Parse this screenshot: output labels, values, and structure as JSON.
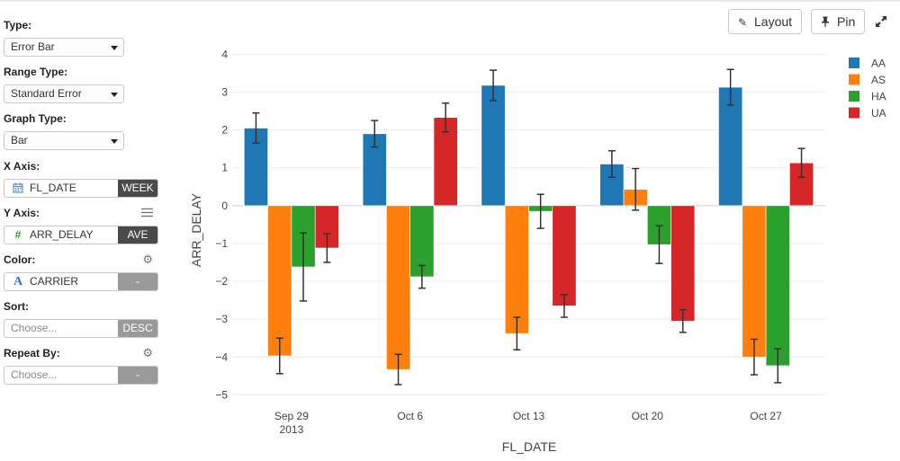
{
  "controls": {
    "type": {
      "label": "Type:",
      "value": "Error Bar"
    },
    "range_type": {
      "label": "Range Type:",
      "value": "Standard Error"
    },
    "graph_type": {
      "label": "Graph Type:",
      "value": "Bar"
    },
    "x_axis": {
      "label": "X Axis:",
      "value": "FL_DATE",
      "button": "WEEK",
      "icon": "calendar-icon"
    },
    "y_axis": {
      "label": "Y Axis:",
      "value": "ARR_DELAY",
      "button": "AVE",
      "icon": "hash-icon",
      "menu_icon": "list-icon"
    },
    "color": {
      "label": "Color:",
      "value": "CARRIER",
      "button": "-",
      "icon": "text-a-icon",
      "settings_icon": "gear-icon"
    },
    "sort": {
      "label": "Sort:",
      "placeholder": "Choose...",
      "button": "DESC"
    },
    "repeat_by": {
      "label": "Repeat By:",
      "placeholder": "Choose...",
      "button": "-",
      "settings_icon": "gear-icon"
    }
  },
  "toolbar": {
    "layout_label": "Layout",
    "pin_label": "Pin",
    "expand_icon": "expand-icon"
  },
  "chart_data": {
    "type": "bar",
    "xlabel": "FL_DATE",
    "ylabel": "ARR_DELAY",
    "ylim": [
      -5.3,
      4.2
    ],
    "yticks": [
      -5,
      -4,
      -3,
      -2,
      -1,
      0,
      1,
      2,
      3,
      4
    ],
    "categories": [
      "Sep 29",
      "Oct 6",
      "Oct 13",
      "Oct 20",
      "Oct 27"
    ],
    "category_sublabels": [
      "2013",
      "",
      "",
      "",
      ""
    ],
    "grid": true,
    "legend_position": "top-right",
    "series": [
      {
        "name": "AA",
        "color": "#1f77b4",
        "values": [
          2.05,
          1.9,
          3.18,
          1.1,
          3.13
        ],
        "errors": [
          0.4,
          0.35,
          0.4,
          0.35,
          0.47
        ]
      },
      {
        "name": "AS",
        "color": "#ff7f0e",
        "values": [
          -3.97,
          -4.33,
          -3.38,
          0.43,
          -4.0
        ],
        "errors": [
          0.47,
          0.4,
          0.43,
          0.55,
          0.47
        ]
      },
      {
        "name": "HA",
        "color": "#2ca02c",
        "values": [
          -1.62,
          -1.88,
          -0.15,
          -1.03,
          -4.23
        ],
        "errors": [
          0.9,
          0.3,
          0.45,
          0.5,
          0.45
        ]
      },
      {
        "name": "UA",
        "color": "#d62728",
        "values": [
          -1.12,
          2.33,
          -2.65,
          -3.05,
          1.13
        ],
        "errors": [
          0.38,
          0.38,
          0.3,
          0.3,
          0.38
        ]
      }
    ]
  }
}
